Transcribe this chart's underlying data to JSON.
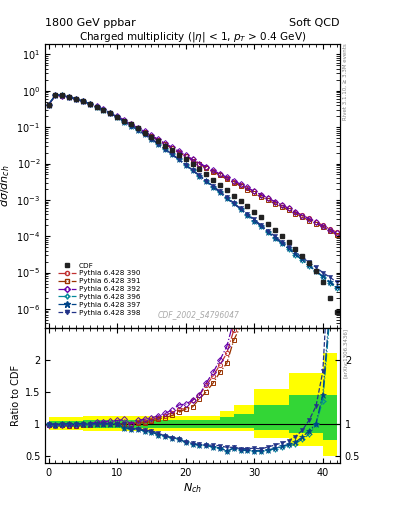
{
  "title_left": "1800 GeV ppbar",
  "title_right": "Soft QCD",
  "plot_title": "Charged multiplicity (|\\eta| < 1, p_T > 0.4 GeV)",
  "xlabel": "$N_{ch}$",
  "ylabel_top": "$d\\sigma/dn_{ch}$",
  "ylabel_bottom": "Ratio to CDF",
  "right_label_top": "Rivet 3.1.10, ≥ 3.3M events",
  "right_label_bottom": "[arXiv:1306.3436]",
  "watermark": "CDF_2002_S4796047",
  "nch_values": [
    0,
    1,
    2,
    3,
    4,
    5,
    6,
    7,
    8,
    9,
    10,
    11,
    12,
    13,
    14,
    15,
    16,
    17,
    18,
    19,
    20,
    21,
    22,
    23,
    24,
    25,
    26,
    27,
    28,
    29,
    30,
    31,
    32,
    33,
    34,
    35,
    36,
    37,
    38,
    39,
    40,
    41,
    42
  ],
  "cdf_data": [
    0.42,
    0.78,
    0.75,
    0.68,
    0.6,
    0.52,
    0.44,
    0.37,
    0.3,
    0.24,
    0.19,
    0.15,
    0.12,
    0.092,
    0.071,
    0.054,
    0.041,
    0.031,
    0.023,
    0.017,
    0.013,
    0.0095,
    0.0069,
    0.005,
    0.0036,
    0.0026,
    0.0019,
    0.0013,
    0.00095,
    0.00067,
    0.00047,
    0.00033,
    0.00022,
    0.00015,
    0.0001,
    6.8e-05,
    4.5e-05,
    2.9e-05,
    1.8e-05,
    1.1e-05,
    5.5e-06,
    2e-06,
    8e-07
  ],
  "p390_data": [
    0.41,
    0.75,
    0.73,
    0.66,
    0.58,
    0.51,
    0.43,
    0.37,
    0.3,
    0.24,
    0.19,
    0.15,
    0.12,
    0.094,
    0.073,
    0.057,
    0.045,
    0.035,
    0.027,
    0.021,
    0.016,
    0.013,
    0.01,
    0.008,
    0.0063,
    0.005,
    0.004,
    0.0032,
    0.0026,
    0.0021,
    0.0017,
    0.0014,
    0.0011,
    0.0009,
    0.00073,
    0.00059,
    0.00047,
    0.00038,
    0.00031,
    0.00025,
    0.0002,
    0.00016,
    0.00013
  ],
  "p391_data": [
    0.41,
    0.76,
    0.73,
    0.66,
    0.58,
    0.51,
    0.43,
    0.37,
    0.3,
    0.24,
    0.19,
    0.15,
    0.12,
    0.093,
    0.072,
    0.056,
    0.044,
    0.034,
    0.026,
    0.02,
    0.016,
    0.012,
    0.0096,
    0.0075,
    0.0059,
    0.0047,
    0.0037,
    0.003,
    0.0024,
    0.0019,
    0.0015,
    0.0012,
    0.00098,
    0.00079,
    0.00064,
    0.00052,
    0.00042,
    0.00034,
    0.00027,
    0.00022,
    0.00018,
    0.00014,
    0.00011
  ],
  "p392_data": [
    0.41,
    0.76,
    0.74,
    0.67,
    0.59,
    0.52,
    0.44,
    0.38,
    0.31,
    0.25,
    0.2,
    0.16,
    0.12,
    0.097,
    0.076,
    0.059,
    0.046,
    0.036,
    0.028,
    0.022,
    0.017,
    0.013,
    0.01,
    0.0082,
    0.0065,
    0.0052,
    0.0042,
    0.0034,
    0.0027,
    0.0022,
    0.0017,
    0.0014,
    0.0011,
    0.0009,
    0.00072,
    0.00058,
    0.00046,
    0.00037,
    0.0003,
    0.00024,
    0.00019,
    0.00015,
    0.00012
  ],
  "p396_data": [
    0.42,
    0.77,
    0.75,
    0.68,
    0.6,
    0.52,
    0.44,
    0.37,
    0.3,
    0.24,
    0.19,
    0.14,
    0.11,
    0.084,
    0.063,
    0.047,
    0.034,
    0.025,
    0.018,
    0.013,
    0.0092,
    0.0065,
    0.0046,
    0.0033,
    0.0023,
    0.0016,
    0.0011,
    0.0008,
    0.00056,
    0.00039,
    0.00027,
    0.00019,
    0.00013,
    9.1e-05,
    6.4e-05,
    4.5e-05,
    3.1e-05,
    2.2e-05,
    1.5e-05,
    1.1e-05,
    7.5e-06,
    5.3e-06,
    3.7e-06
  ],
  "p397_data": [
    0.42,
    0.77,
    0.75,
    0.68,
    0.6,
    0.52,
    0.44,
    0.37,
    0.3,
    0.24,
    0.19,
    0.14,
    0.11,
    0.084,
    0.063,
    0.047,
    0.034,
    0.025,
    0.018,
    0.013,
    0.0092,
    0.0065,
    0.0046,
    0.0033,
    0.0023,
    0.0016,
    0.0011,
    0.0008,
    0.00056,
    0.00039,
    0.00027,
    0.00019,
    0.00013,
    9.2e-05,
    6.5e-05,
    4.6e-05,
    3.2e-05,
    2.3e-05,
    1.6e-05,
    1.1e-05,
    8e-06,
    5.6e-06,
    4e-06
  ],
  "p398_data": [
    0.42,
    0.77,
    0.75,
    0.68,
    0.6,
    0.52,
    0.44,
    0.37,
    0.3,
    0.24,
    0.19,
    0.15,
    0.11,
    0.085,
    0.064,
    0.048,
    0.035,
    0.025,
    0.018,
    0.013,
    0.0093,
    0.0066,
    0.0047,
    0.0033,
    0.0024,
    0.0017,
    0.0012,
    0.00082,
    0.00058,
    0.00041,
    0.00029,
    0.0002,
    0.00014,
    0.0001,
    7e-05,
    5e-05,
    3.6e-05,
    2.6e-05,
    1.9e-05,
    1.4e-05,
    1e-05,
    7.5e-06,
    5.5e-06
  ],
  "colors": {
    "cdf": "#222222",
    "p390": "#c03030",
    "p391": "#993300",
    "p392": "#6600aa",
    "p396": "#008899",
    "p397": "#004488",
    "p398": "#223388"
  },
  "band_nch": [
    0,
    5,
    10,
    15,
    20,
    25,
    27,
    30,
    35,
    40,
    42
  ],
  "band_yellow_lo": [
    0.9,
    0.88,
    0.88,
    0.88,
    0.88,
    0.88,
    0.88,
    0.78,
    0.65,
    0.5,
    0.45
  ],
  "band_yellow_hi": [
    1.1,
    1.12,
    1.12,
    1.12,
    1.12,
    1.2,
    1.3,
    1.55,
    1.8,
    2.1,
    2.1
  ],
  "band_green_lo": [
    0.95,
    0.94,
    0.94,
    0.94,
    0.94,
    0.94,
    0.93,
    0.9,
    0.85,
    0.75,
    0.72
  ],
  "band_green_hi": [
    1.05,
    1.06,
    1.06,
    1.06,
    1.06,
    1.1,
    1.15,
    1.3,
    1.45,
    1.45,
    1.45
  ]
}
